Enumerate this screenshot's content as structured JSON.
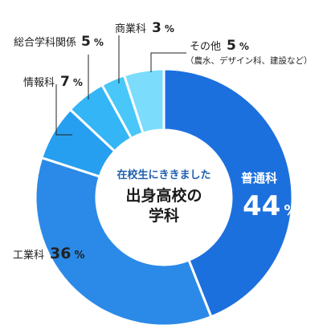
{
  "chart_data": {
    "type": "pie",
    "style": "donut",
    "categories": [
      "普通科",
      "工業科",
      "情報科",
      "総合学科関係",
      "商業科",
      "その他"
    ],
    "values": [
      44,
      36,
      7,
      5,
      3,
      5
    ],
    "value_suffix": "%",
    "colors": [
      "#1c70dd",
      "#2b8ae7",
      "#279ff0",
      "#33b5f6",
      "#48c7f8",
      "#7bdcfb"
    ],
    "center_text": {
      "line1": "在校生にききました",
      "line2": "出身高校の",
      "line3": "学科"
    },
    "other_note": "（農水、デザイン科、建設など）"
  },
  "labels": {
    "futsuka": {
      "name": "普通科",
      "value": "44",
      "unit": "%"
    },
    "kogyo": {
      "name": "工業科",
      "value": "36",
      "unit": "%"
    },
    "joho": {
      "name": "情報科",
      "value": "7",
      "unit": "%"
    },
    "sogo": {
      "name": "総合学科関係",
      "value": "5",
      "unit": "%"
    },
    "shogyo": {
      "name": "商業科",
      "value": "3",
      "unit": "%"
    },
    "sonota": {
      "name": "その他",
      "value": "5",
      "unit": "%"
    }
  }
}
